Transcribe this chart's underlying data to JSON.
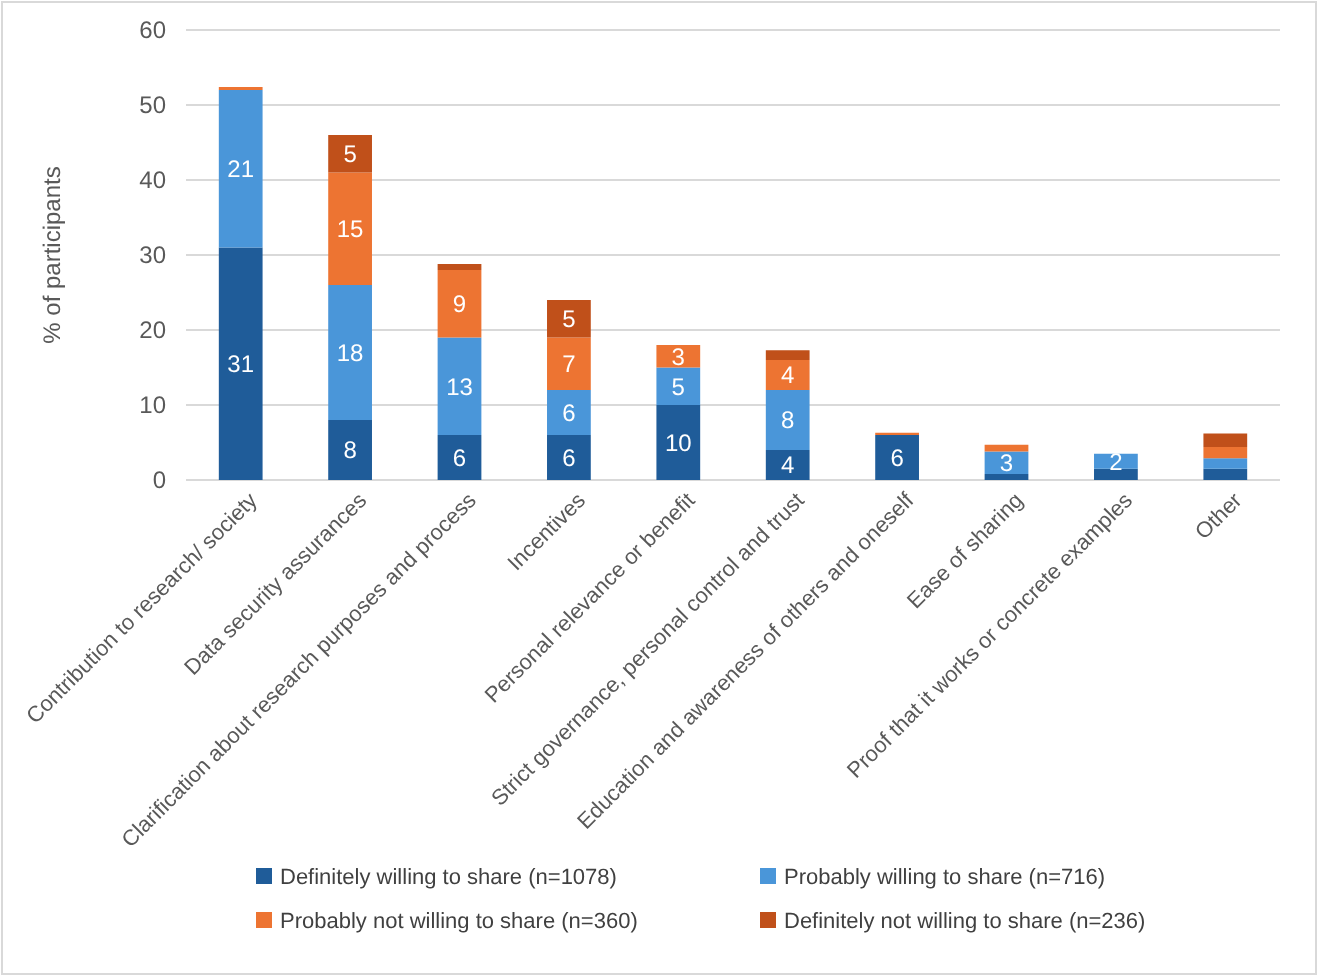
{
  "chart_data": {
    "type": "bar",
    "stacked": true,
    "ylabel": "% of participants",
    "categories": [
      "Contribution to research/ society",
      "Data security assurances",
      "Clarification about research purposes and process",
      "Incentives",
      "Personal relevance or benefit",
      "Strict governance, personal control and trust",
      "Education and awareness of others and oneself",
      "Ease of sharing",
      "Proof that it works or concrete examples",
      "Other"
    ],
    "series": [
      {
        "name": "Definitely willing to share (n=1078)",
        "color": "#1f5c99",
        "values": [
          31,
          8,
          6,
          6,
          10,
          4,
          6,
          0.8,
          1.5,
          1.5
        ],
        "value_labels": [
          "31",
          "8",
          "6",
          "6",
          "10",
          "4",
          "6",
          null,
          null,
          null
        ]
      },
      {
        "name": "Probably willing to share (n=716)",
        "color": "#4a96d9",
        "values": [
          21,
          18,
          13,
          6,
          5,
          8,
          0,
          3,
          2,
          1.4
        ],
        "value_labels": [
          "21",
          "18",
          "13",
          "6",
          "5",
          "8",
          null,
          "3",
          "2",
          null
        ]
      },
      {
        "name": "Probably not willing to share (n=360)",
        "color": "#ed7432",
        "values": [
          0.4,
          15,
          9,
          7,
          3,
          4,
          0.3,
          0.9,
          0,
          1.5
        ],
        "value_labels": [
          null,
          "15",
          "9",
          "7",
          "3",
          "4",
          null,
          null,
          null,
          null
        ]
      },
      {
        "name": "Definitely not willing to share (n=236)",
        "color": "#c0501a",
        "values": [
          0,
          5,
          0.8,
          5,
          0,
          1.3,
          0,
          0,
          0,
          1.8
        ],
        "value_labels": [
          null,
          "5",
          null,
          "5",
          null,
          null,
          null,
          null,
          null,
          null
        ]
      }
    ],
    "ylim": [
      0,
      60
    ],
    "yticks": [
      0,
      10,
      20,
      30,
      40,
      50,
      60
    ],
    "grid": "y",
    "legend": "bottom"
  }
}
